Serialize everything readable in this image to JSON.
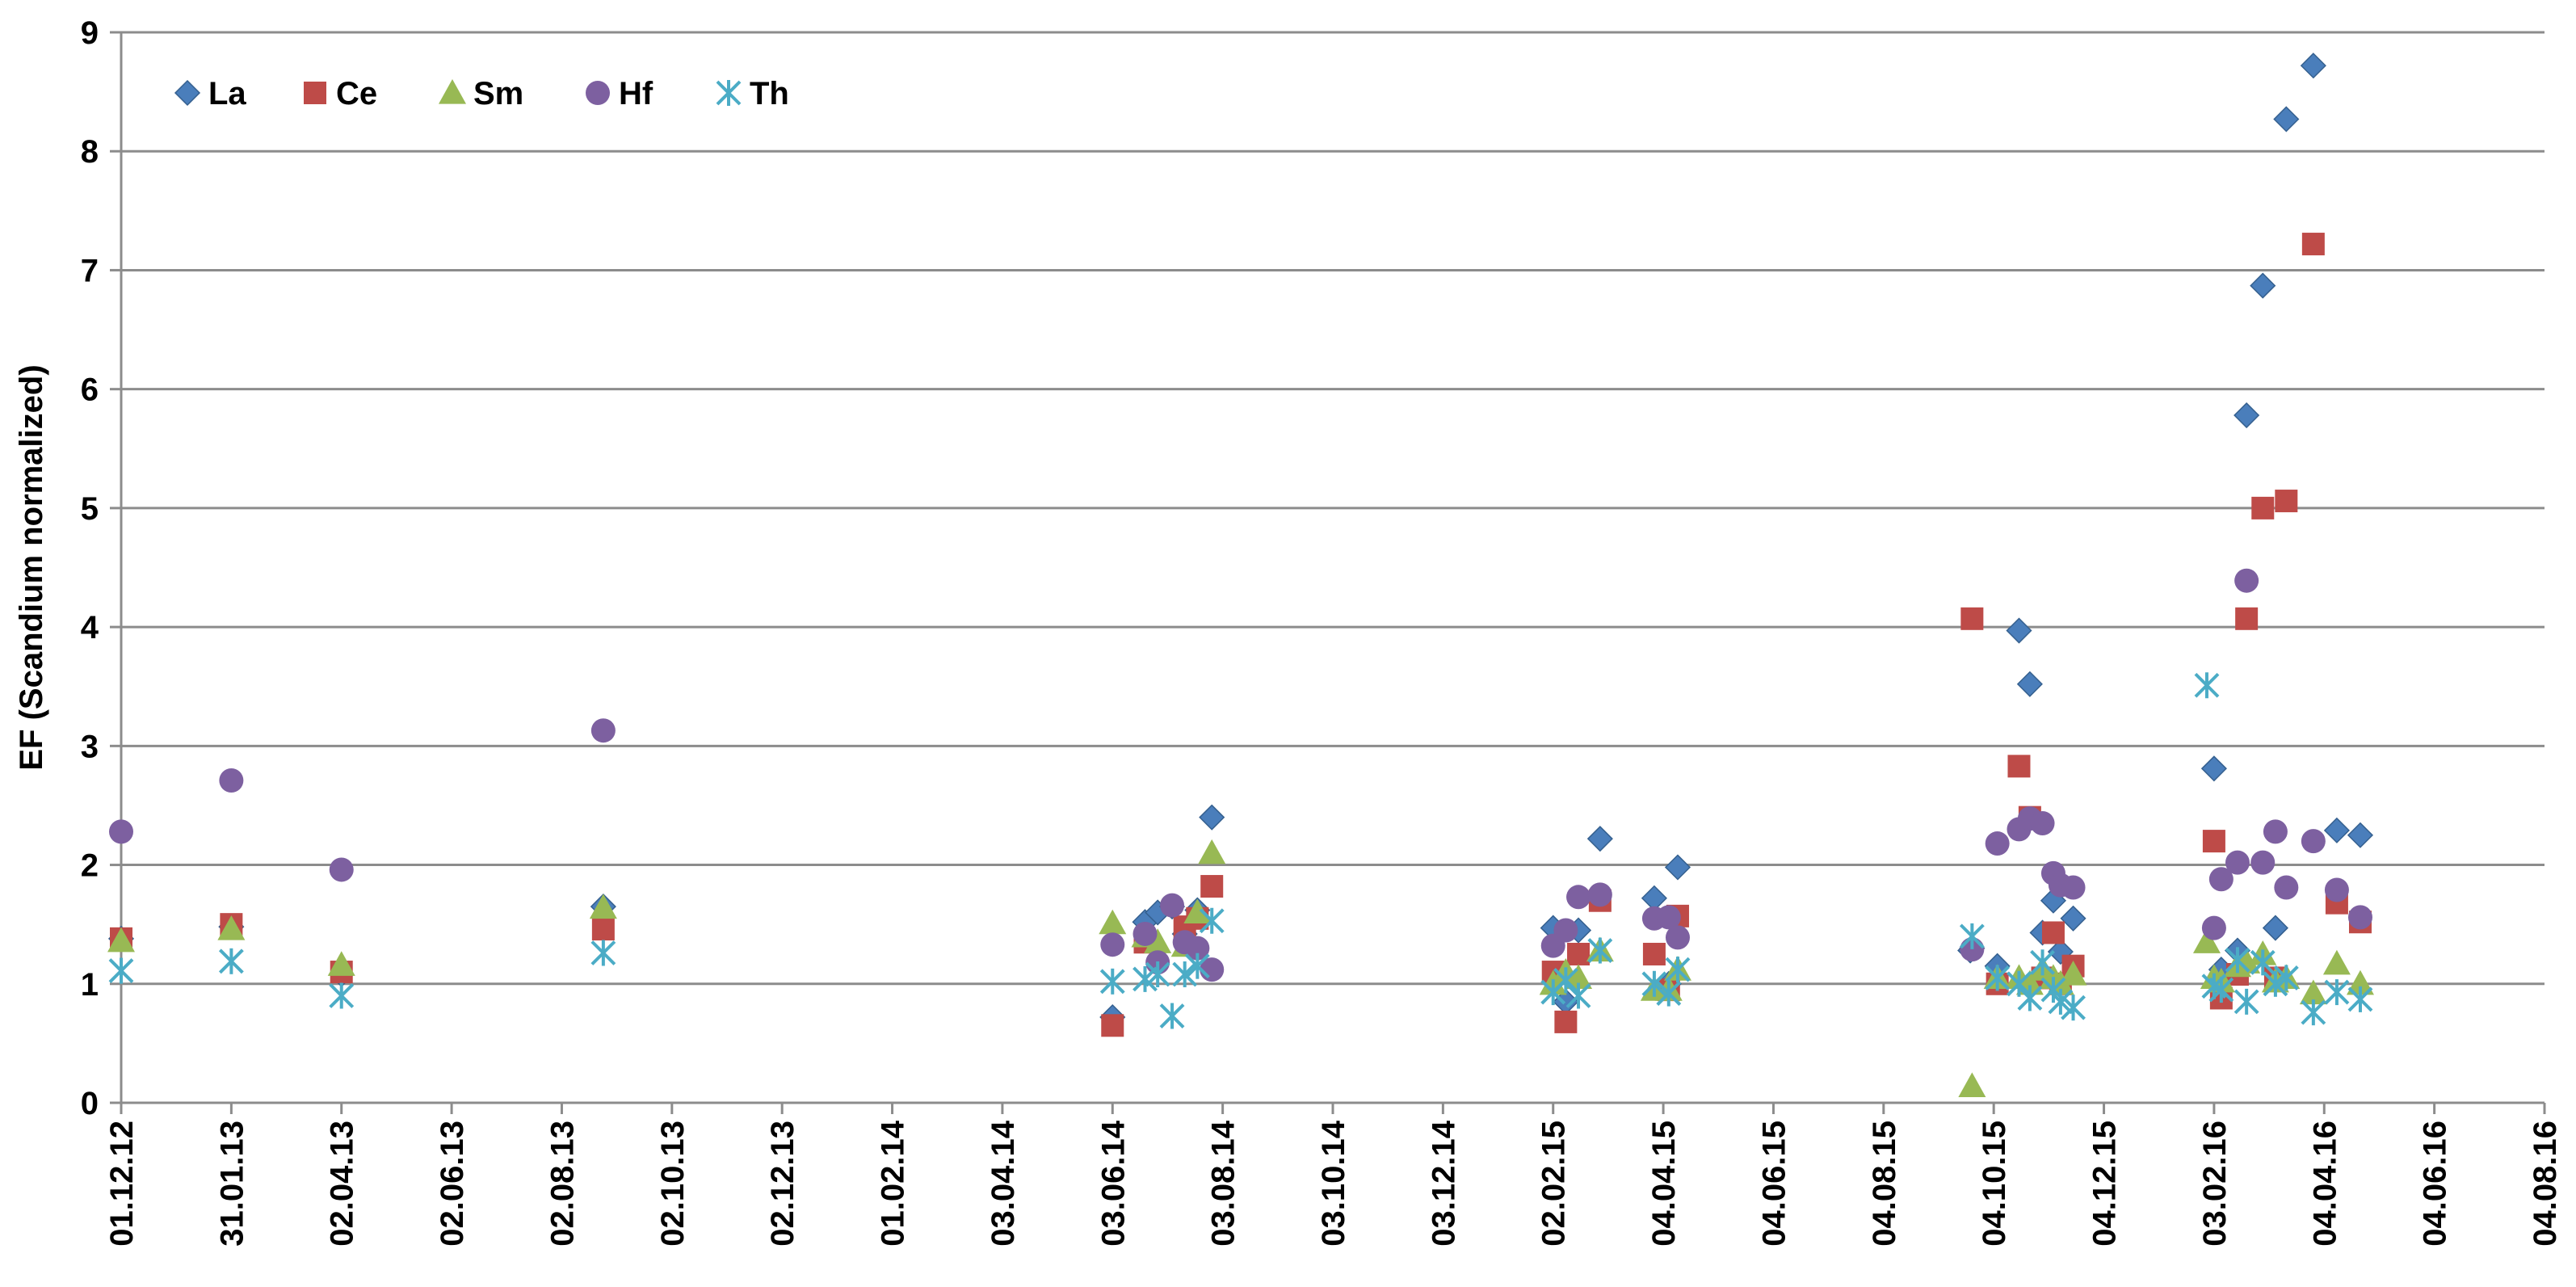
{
  "chart_data": {
    "type": "scatter",
    "title": "",
    "xlabel": "",
    "ylabel": "EF (Scandium normalized)",
    "ylim": [
      0,
      9
    ],
    "y_ticks": [
      0,
      1,
      2,
      3,
      4,
      5,
      6,
      7,
      8,
      9
    ],
    "xlim": [
      "2012-12-01",
      "2016-08-04"
    ],
    "x_ticks": [
      {
        "date": "2012-12-01",
        "label": "01.12.12"
      },
      {
        "date": "2013-01-31",
        "label": "31.01.13"
      },
      {
        "date": "2013-04-02",
        "label": "02.04.13"
      },
      {
        "date": "2013-06-02",
        "label": "02.06.13"
      },
      {
        "date": "2013-08-02",
        "label": "02.08.13"
      },
      {
        "date": "2013-10-02",
        "label": "02.10.13"
      },
      {
        "date": "2013-12-02",
        "label": "02.12.13"
      },
      {
        "date": "2014-02-01",
        "label": "01.02.14"
      },
      {
        "date": "2014-04-03",
        "label": "03.04.14"
      },
      {
        "date": "2014-06-03",
        "label": "03.06.14"
      },
      {
        "date": "2014-08-03",
        "label": "03.08.14"
      },
      {
        "date": "2014-10-03",
        "label": "03.10.14"
      },
      {
        "date": "2014-12-03",
        "label": "03.12.14"
      },
      {
        "date": "2015-02-02",
        "label": "02.02.15"
      },
      {
        "date": "2015-04-04",
        "label": "04.04.15"
      },
      {
        "date": "2015-06-04",
        "label": "04.06.15"
      },
      {
        "date": "2015-08-04",
        "label": "04.08.15"
      },
      {
        "date": "2015-10-04",
        "label": "04.10.15"
      },
      {
        "date": "2015-12-04",
        "label": "04.12.15"
      },
      {
        "date": "2016-02-03",
        "label": "03.02.16"
      },
      {
        "date": "2016-04-04",
        "label": "04.04.16"
      },
      {
        "date": "2016-06-04",
        "label": "04.06.16"
      },
      {
        "date": "2016-08-04",
        "label": "04.08.16"
      }
    ],
    "grid": "horizontal",
    "legend_position": "top-left",
    "series": [
      {
        "name": "La",
        "color": "#4A7EBB",
        "marker": "diamond",
        "points": [
          [
            "2012-12-01",
            1.38
          ],
          [
            "2013-01-31",
            1.48
          ],
          [
            "2013-04-02",
            1.08
          ],
          [
            "2013-08-25",
            1.65
          ],
          [
            "2014-06-03",
            0.72
          ],
          [
            "2014-06-21",
            1.52
          ],
          [
            "2014-06-28",
            1.6
          ],
          [
            "2014-07-06",
            1.65
          ],
          [
            "2014-07-13",
            1.42
          ],
          [
            "2014-07-20",
            1.62
          ],
          [
            "2014-07-28",
            2.4
          ],
          [
            "2015-02-02",
            1.47
          ],
          [
            "2015-02-09",
            0.85
          ],
          [
            "2015-02-16",
            1.45
          ],
          [
            "2015-02-28",
            2.22
          ],
          [
            "2015-03-30",
            1.72
          ],
          [
            "2015-04-07",
            1.0
          ],
          [
            "2015-04-12",
            1.98
          ],
          [
            "2015-09-22",
            1.3
          ],
          [
            "2015-09-21",
            1.28
          ],
          [
            "2015-10-06",
            1.15
          ],
          [
            "2015-10-18",
            3.97
          ],
          [
            "2015-10-24",
            3.52
          ],
          [
            "2015-10-31",
            1.43
          ],
          [
            "2015-11-06",
            1.7
          ],
          [
            "2015-11-10",
            1.27
          ],
          [
            "2015-11-17",
            1.55
          ],
          [
            "2016-02-03",
            2.81
          ],
          [
            "2016-02-07",
            1.12
          ],
          [
            "2016-02-16",
            1.28
          ],
          [
            "2016-02-21",
            5.78
          ],
          [
            "2016-03-01",
            6.87
          ],
          [
            "2016-03-08",
            1.47
          ],
          [
            "2016-03-14",
            8.27
          ],
          [
            "2016-03-29",
            8.72
          ],
          [
            "2016-04-11",
            2.29
          ],
          [
            "2016-04-24",
            2.25
          ]
        ]
      },
      {
        "name": "Ce",
        "color": "#BE4B48",
        "marker": "square",
        "points": [
          [
            "2012-12-01",
            1.38
          ],
          [
            "2013-01-31",
            1.5
          ],
          [
            "2013-04-02",
            1.1
          ],
          [
            "2013-08-25",
            1.46
          ],
          [
            "2014-06-03",
            0.65
          ],
          [
            "2014-06-21",
            1.35
          ],
          [
            "2014-07-13",
            1.48
          ],
          [
            "2014-07-20",
            1.55
          ],
          [
            "2014-07-28",
            1.82
          ],
          [
            "2015-02-02",
            1.1
          ],
          [
            "2015-02-09",
            0.68
          ],
          [
            "2015-02-16",
            1.25
          ],
          [
            "2015-02-28",
            1.7
          ],
          [
            "2015-03-30",
            1.25
          ],
          [
            "2015-04-07",
            0.95
          ],
          [
            "2015-04-12",
            1.57
          ],
          [
            "2015-09-22",
            4.07
          ],
          [
            "2015-10-06",
            1.0
          ],
          [
            "2015-10-18",
            2.83
          ],
          [
            "2015-10-24",
            2.4
          ],
          [
            "2015-10-31",
            1.05
          ],
          [
            "2015-11-06",
            1.43
          ],
          [
            "2015-11-10",
            1.0
          ],
          [
            "2015-11-17",
            1.15
          ],
          [
            "2016-02-03",
            2.2
          ],
          [
            "2016-02-07",
            0.88
          ],
          [
            "2016-02-16",
            1.08
          ],
          [
            "2016-02-21",
            4.07
          ],
          [
            "2016-03-01",
            5.0
          ],
          [
            "2016-03-08",
            1.05
          ],
          [
            "2016-03-14",
            5.06
          ],
          [
            "2016-03-29",
            7.22
          ],
          [
            "2016-04-11",
            1.68
          ],
          [
            "2016-04-24",
            1.52
          ]
        ]
      },
      {
        "name": "Sm",
        "color": "#98B954",
        "marker": "triangle",
        "points": [
          [
            "2012-12-01",
            1.36
          ],
          [
            "2013-01-31",
            1.46
          ],
          [
            "2013-04-02",
            1.16
          ],
          [
            "2013-08-25",
            1.64
          ],
          [
            "2014-06-03",
            1.51
          ],
          [
            "2014-06-21",
            1.4
          ],
          [
            "2014-06-28",
            1.35
          ],
          [
            "2014-07-13",
            1.32
          ],
          [
            "2014-07-20",
            1.6
          ],
          [
            "2014-07-28",
            2.1
          ],
          [
            "2015-02-02",
            1.0
          ],
          [
            "2015-02-09",
            1.1
          ],
          [
            "2015-02-16",
            1.05
          ],
          [
            "2015-02-28",
            1.28
          ],
          [
            "2015-03-30",
            0.95
          ],
          [
            "2015-04-07",
            0.95
          ],
          [
            "2015-04-12",
            1.12
          ],
          [
            "2015-09-22",
            0.14
          ],
          [
            "2015-10-06",
            1.05
          ],
          [
            "2015-10-18",
            1.05
          ],
          [
            "2015-10-24",
            1.0
          ],
          [
            "2015-10-31",
            1.12
          ],
          [
            "2015-11-06",
            1.05
          ],
          [
            "2015-11-10",
            1.0
          ],
          [
            "2015-11-17",
            1.08
          ],
          [
            "2016-01-30",
            1.35
          ],
          [
            "2016-02-03",
            1.05
          ],
          [
            "2016-02-07",
            1.02
          ],
          [
            "2016-02-16",
            1.15
          ],
          [
            "2016-02-21",
            1.18
          ],
          [
            "2016-03-01",
            1.25
          ],
          [
            "2016-03-08",
            1.02
          ],
          [
            "2016-03-14",
            1.05
          ],
          [
            "2016-03-29",
            0.92
          ],
          [
            "2016-04-11",
            1.17
          ],
          [
            "2016-04-24",
            1.0
          ]
        ]
      },
      {
        "name": "Hf",
        "color": "#7D60A0",
        "marker": "circle",
        "points": [
          [
            "2012-12-01",
            2.28
          ],
          [
            "2013-01-31",
            2.71
          ],
          [
            "2013-04-02",
            1.96
          ],
          [
            "2013-08-25",
            3.13
          ],
          [
            "2014-06-03",
            1.33
          ],
          [
            "2014-06-21",
            1.42
          ],
          [
            "2014-06-28",
            1.18
          ],
          [
            "2014-07-06",
            1.66
          ],
          [
            "2014-07-13",
            1.35
          ],
          [
            "2014-07-20",
            1.3
          ],
          [
            "2014-07-28",
            1.12
          ],
          [
            "2015-02-02",
            1.32
          ],
          [
            "2015-02-09",
            1.45
          ],
          [
            "2015-02-16",
            1.73
          ],
          [
            "2015-02-28",
            1.75
          ],
          [
            "2015-03-30",
            1.55
          ],
          [
            "2015-04-07",
            1.56
          ],
          [
            "2015-04-12",
            1.39
          ],
          [
            "2015-09-22",
            1.29
          ],
          [
            "2015-10-06",
            2.18
          ],
          [
            "2015-10-18",
            2.3
          ],
          [
            "2015-10-24",
            2.39
          ],
          [
            "2015-10-31",
            2.35
          ],
          [
            "2015-11-06",
            1.93
          ],
          [
            "2015-11-10",
            1.83
          ],
          [
            "2015-11-17",
            1.81
          ],
          [
            "2016-02-03",
            1.47
          ],
          [
            "2016-02-07",
            1.88
          ],
          [
            "2016-02-16",
            2.02
          ],
          [
            "2016-02-21",
            4.39
          ],
          [
            "2016-03-01",
            2.02
          ],
          [
            "2016-03-08",
            2.28
          ],
          [
            "2016-03-14",
            1.81
          ],
          [
            "2016-03-29",
            2.2
          ],
          [
            "2016-04-11",
            1.79
          ],
          [
            "2016-04-24",
            1.56
          ]
        ]
      },
      {
        "name": "Th",
        "color": "#4BACC6",
        "marker": "asterisk",
        "points": [
          [
            "2012-12-01",
            1.11
          ],
          [
            "2013-01-31",
            1.19
          ],
          [
            "2013-04-02",
            0.9
          ],
          [
            "2013-08-25",
            1.26
          ],
          [
            "2014-06-03",
            1.02
          ],
          [
            "2014-06-21",
            1.04
          ],
          [
            "2014-06-28",
            1.08
          ],
          [
            "2014-07-06",
            0.73
          ],
          [
            "2014-07-13",
            1.08
          ],
          [
            "2014-07-20",
            1.15
          ],
          [
            "2014-07-28",
            1.53
          ],
          [
            "2015-02-02",
            0.93
          ],
          [
            "2015-02-09",
            1.03
          ],
          [
            "2015-02-16",
            0.9
          ],
          [
            "2015-02-28",
            1.28
          ],
          [
            "2015-03-30",
            1.0
          ],
          [
            "2015-04-07",
            0.92
          ],
          [
            "2015-04-12",
            1.12
          ],
          [
            "2015-09-22",
            1.4
          ],
          [
            "2015-10-06",
            1.05
          ],
          [
            "2015-10-18",
            1.0
          ],
          [
            "2015-10-24",
            0.88
          ],
          [
            "2015-10-31",
            1.18
          ],
          [
            "2015-11-06",
            0.95
          ],
          [
            "2015-11-10",
            0.85
          ],
          [
            "2015-11-17",
            0.8
          ],
          [
            "2016-01-30",
            3.51
          ],
          [
            "2016-02-03",
            0.98
          ],
          [
            "2016-02-07",
            0.95
          ],
          [
            "2016-02-16",
            1.2
          ],
          [
            "2016-02-21",
            0.85
          ],
          [
            "2016-03-01",
            1.18
          ],
          [
            "2016-03-08",
            1.0
          ],
          [
            "2016-03-14",
            1.05
          ],
          [
            "2016-03-29",
            0.76
          ],
          [
            "2016-04-11",
            0.93
          ],
          [
            "2016-04-24",
            0.87
          ]
        ]
      }
    ]
  }
}
